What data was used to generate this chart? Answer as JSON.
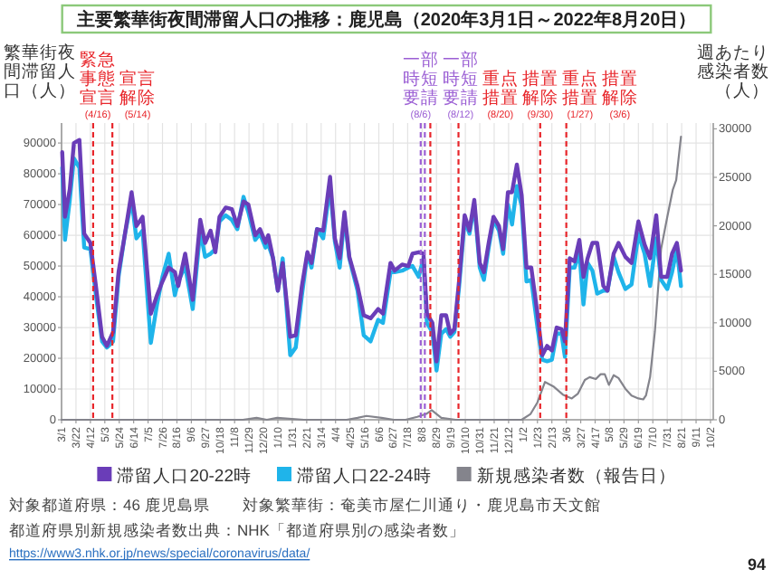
{
  "chart_data": {
    "type": "line",
    "title": "主要繁華街夜間滞留人口の推移：鹿児島（2020年3月1日～2022年8月20日）",
    "ylabel": "繁華街夜間滞留人口（人）",
    "y2label": "週あたり感染者数（人）",
    "x": [
      "2020-03-02",
      "2020-03-06",
      "2020-03-13",
      "2020-03-19",
      "2020-03-27",
      "2020-04-03",
      "2020-04-12",
      "2020-04-20",
      "2020-04-29",
      "2020-05-06",
      "2020-05-15",
      "2020-05-23",
      "2020-06-01",
      "2020-06-11",
      "2020-06-18",
      "2020-06-27",
      "2020-07-09",
      "2020-07-18",
      "2020-07-26",
      "2020-08-04",
      "2020-08-13",
      "2020-08-18",
      "2020-08-28",
      "2020-09-08",
      "2020-09-19",
      "2020-09-26",
      "2020-10-04",
      "2020-10-11",
      "2020-10-17",
      "2020-10-26",
      "2020-11-04",
      "2020-11-12",
      "2020-11-21",
      "2020-11-28",
      "2020-12-08",
      "2020-12-15",
      "2020-12-23",
      "2020-12-27",
      "2021-01-03",
      "2021-01-10",
      "2021-01-17",
      "2021-01-28",
      "2021-02-05",
      "2021-02-14",
      "2021-02-22",
      "2021-02-28",
      "2021-03-08",
      "2021-03-17",
      "2021-03-27",
      "2021-04-03",
      "2021-04-10",
      "2021-04-17",
      "2021-04-24",
      "2021-05-06",
      "2021-05-15",
      "2021-05-25",
      "2021-06-05",
      "2021-06-12",
      "2021-06-23",
      "2021-06-29",
      "2021-07-10",
      "2021-07-19",
      "2021-07-25",
      "2021-08-03",
      "2021-08-10",
      "2021-08-15",
      "2021-08-23",
      "2021-08-29",
      "2021-09-05",
      "2021-09-12",
      "2021-09-18",
      "2021-09-24",
      "2021-10-01",
      "2021-10-09",
      "2021-10-16",
      "2021-10-23",
      "2021-10-31",
      "2021-11-06",
      "2021-11-13",
      "2021-11-20",
      "2021-11-28",
      "2021-12-04",
      "2021-12-11",
      "2021-12-17",
      "2021-12-24",
      "2021-12-31",
      "2022-01-07",
      "2022-01-14",
      "2022-01-23",
      "2022-01-30",
      "2022-02-06",
      "2022-02-13",
      "2022-02-20",
      "2022-02-27",
      "2022-03-04",
      "2022-03-11",
      "2022-03-18",
      "2022-03-25",
      "2022-03-31",
      "2022-04-06",
      "2022-04-13",
      "2022-04-20",
      "2022-04-29",
      "2022-05-05",
      "2022-05-14",
      "2022-05-21",
      "2022-05-31",
      "2022-06-09",
      "2022-06-19",
      "2022-06-28",
      "2022-07-06",
      "2022-07-15",
      "2022-07-22",
      "2022-07-31",
      "2022-08-07",
      "2022-08-14",
      "2022-08-20"
    ],
    "series": [
      {
        "name": "滞留人口20-22時",
        "color": "#6a3db8",
        "values": [
          87000,
          66000,
          75000,
          90000,
          91000,
          60500,
          57500,
          43500,
          27000,
          24000,
          28500,
          48000,
          60000,
          74000,
          63000,
          66000,
          34500,
          40500,
          45000,
          49500,
          48000,
          43500,
          54000,
          39000,
          65000,
          57500,
          61500,
          54500,
          66000,
          69000,
          68500,
          63000,
          71000,
          70000,
          60000,
          62000,
          57500,
          60000,
          52500,
          42000,
          51000,
          27000,
          27500,
          43500,
          54500,
          51000,
          62000,
          61500,
          79000,
          59000,
          52500,
          67500,
          53000,
          43500,
          34000,
          33000,
          36000,
          34500,
          51000,
          48500,
          50500,
          50000,
          54000,
          54500,
          54000,
          34500,
          31500,
          19000,
          34000,
          34000,
          28000,
          29500,
          45500,
          66500,
          61500,
          71500,
          51000,
          48000,
          57500,
          66000,
          63000,
          55500,
          74000,
          74000,
          83000,
          73000,
          49500,
          49500,
          34500,
          21000,
          24000,
          22500,
          30000,
          29500,
          25500,
          52500,
          51500,
          58500,
          46500,
          52500,
          57500,
          57500,
          43500,
          42000,
          54000,
          57500,
          53000,
          51000,
          64500,
          57000,
          52500,
          66500,
          46500,
          46500,
          54000,
          57500,
          48500
        ]
      },
      {
        "name": "滞留人口22-24時",
        "color": "#1fb4ea",
        "values": [
          82000,
          58500,
          71500,
          85000,
          82000,
          56000,
          55500,
          40500,
          25500,
          23500,
          25500,
          46500,
          60000,
          71500,
          59000,
          61500,
          25000,
          37500,
          46500,
          54000,
          40500,
          45000,
          50000,
          36000,
          61500,
          53000,
          54000,
          55500,
          64500,
          66500,
          65000,
          62000,
          72500,
          67500,
          58500,
          60500,
          56000,
          57000,
          52500,
          42000,
          52500,
          21000,
          23500,
          40500,
          54000,
          49500,
          62000,
          59000,
          76000,
          58000,
          49500,
          66000,
          52500,
          42000,
          27500,
          25500,
          32500,
          31500,
          48000,
          48000,
          48500,
          49500,
          50000,
          46500,
          52500,
          31500,
          28500,
          16000,
          28000,
          29500,
          27000,
          28500,
          43500,
          65000,
          60500,
          70000,
          49500,
          45500,
          56000,
          65000,
          61500,
          54000,
          70000,
          63500,
          76000,
          69500,
          45000,
          45500,
          30000,
          19500,
          19000,
          19500,
          28000,
          28000,
          20500,
          49500,
          49500,
          54500,
          37500,
          51000,
          48500,
          41000,
          42000,
          42000,
          53000,
          48000,
          42500,
          44000,
          60500,
          54000,
          43500,
          59000,
          45500,
          42500,
          48000,
          55500,
          43500
        ]
      },
      {
        "name": "新規感染者数（報告日）",
        "color": "#84848c",
        "axis": "y2",
        "x": [
          "2020-03-01",
          "2020-07-01",
          "2020-11-20",
          "2020-12-10",
          "2020-12-25",
          "2021-01-09",
          "2021-02-17",
          "2021-04-20",
          "2021-05-06",
          "2021-05-19",
          "2021-06-10",
          "2021-06-28",
          "2021-07-15",
          "2021-08-01",
          "2021-08-14",
          "2021-08-22",
          "2021-09-05",
          "2021-09-26",
          "2021-12-31",
          "2022-01-13",
          "2022-01-23",
          "2022-02-03",
          "2022-02-16",
          "2022-03-01",
          "2022-03-14",
          "2022-03-23",
          "2022-04-02",
          "2022-04-09",
          "2022-04-18",
          "2022-04-25",
          "2022-05-01",
          "2022-05-07",
          "2022-05-14",
          "2022-05-21",
          "2022-05-31",
          "2022-06-09",
          "2022-06-19",
          "2022-06-26",
          "2022-06-30",
          "2022-07-06",
          "2022-07-13",
          "2022-07-22",
          "2022-07-31",
          "2022-08-08",
          "2022-08-13",
          "2022-08-20"
        ],
        "values": [
          0,
          0,
          0,
          200,
          0,
          200,
          0,
          0,
          200,
          400,
          200,
          0,
          0,
          300,
          600,
          1000,
          200,
          0,
          0,
          600,
          1800,
          3900,
          3400,
          2600,
          2200,
          2700,
          4100,
          4400,
          4200,
          4700,
          4700,
          3600,
          4600,
          4300,
          3200,
          2500,
          2200,
          2100,
          2500,
          4400,
          9100,
          17600,
          20900,
          23700,
          24700,
          29200
        ]
      }
    ],
    "xlim": [
      "2020-03-01",
      "2022-10-06"
    ],
    "xticks": [
      {
        "value": "2020-03-01",
        "label": "3/1"
      },
      {
        "value": "2020-03-22",
        "label": "3/22"
      },
      {
        "value": "2020-04-12",
        "label": "4/12"
      },
      {
        "value": "2020-05-03",
        "label": "5/3"
      },
      {
        "value": "2020-05-24",
        "label": "5/24"
      },
      {
        "value": "2020-06-14",
        "label": "6/14"
      },
      {
        "value": "2020-07-05",
        "label": "7/5"
      },
      {
        "value": "2020-07-26",
        "label": "7/26"
      },
      {
        "value": "2020-08-16",
        "label": "8/16"
      },
      {
        "value": "2020-09-06",
        "label": "9/6"
      },
      {
        "value": "2020-09-27",
        "label": "9/27"
      },
      {
        "value": "2020-10-18",
        "label": "10/18"
      },
      {
        "value": "2020-11-08",
        "label": "11/8"
      },
      {
        "value": "2020-11-29",
        "label": "11/29"
      },
      {
        "value": "2020-12-20",
        "label": "12/20"
      },
      {
        "value": "2021-01-10",
        "label": "1/10"
      },
      {
        "value": "2021-01-31",
        "label": "1/31"
      },
      {
        "value": "2021-02-21",
        "label": "2/21"
      },
      {
        "value": "2021-03-14",
        "label": "3/14"
      },
      {
        "value": "2021-04-04",
        "label": "4/4"
      },
      {
        "value": "2021-04-25",
        "label": "4/25"
      },
      {
        "value": "2021-05-16",
        "label": "5/16"
      },
      {
        "value": "2021-06-06",
        "label": "6/6"
      },
      {
        "value": "2021-06-27",
        "label": "6/27"
      },
      {
        "value": "2021-07-18",
        "label": "7/18"
      },
      {
        "value": "2021-08-08",
        "label": "8/8"
      },
      {
        "value": "2021-08-29",
        "label": "8/29"
      },
      {
        "value": "2021-09-19",
        "label": "9/19"
      },
      {
        "value": "2021-10-10",
        "label": "10/10"
      },
      {
        "value": "2021-10-31",
        "label": "10/31"
      },
      {
        "value": "2021-11-21",
        "label": "11/21"
      },
      {
        "value": "2021-12-12",
        "label": "12/12"
      },
      {
        "value": "2022-01-02",
        "label": "1/2"
      },
      {
        "value": "2022-01-23",
        "label": "1/23"
      },
      {
        "value": "2022-02-13",
        "label": "2/13"
      },
      {
        "value": "2022-03-06",
        "label": "3/6"
      },
      {
        "value": "2022-03-27",
        "label": "3/27"
      },
      {
        "value": "2022-04-17",
        "label": "4/17"
      },
      {
        "value": "2022-05-08",
        "label": "5/8"
      },
      {
        "value": "2022-05-29",
        "label": "5/29"
      },
      {
        "value": "2022-06-19",
        "label": "6/19"
      },
      {
        "value": "2022-07-10",
        "label": "7/10"
      },
      {
        "value": "2022-07-31",
        "label": "7/31"
      },
      {
        "value": "2022-08-21",
        "label": "8/21"
      },
      {
        "value": "2022-09-11",
        "label": "9/11"
      },
      {
        "value": "2022-10-02",
        "label": "10/2"
      }
    ],
    "ylim": [
      0,
      96500
    ],
    "yticks": [
      0,
      10000,
      20000,
      30000,
      40000,
      50000,
      60000,
      70000,
      80000,
      90000
    ],
    "y2lim": [
      0,
      30600
    ],
    "y2ticks": [
      0,
      5000,
      10000,
      15000,
      20000,
      25000,
      30000
    ],
    "ref_lines": [
      {
        "axis": "x",
        "value": "2020-04-16",
        "label": "緊急事態宣言(4/16)",
        "color": "#e8262b",
        "line_style": "dashed"
      },
      {
        "axis": "x",
        "value": "2020-05-14",
        "label": "宣言解除(5/14)",
        "color": "#e8262b",
        "line_style": "dashed"
      },
      {
        "axis": "x",
        "value": "2021-08-06",
        "label": "一部時短要請(8/6)",
        "color": "#9b5fd4",
        "line_style": "dashed"
      },
      {
        "axis": "x",
        "value": "2021-08-12",
        "label": "一部時短要請(8/12)",
        "color": "#9b5fd4",
        "line_style": "dashed"
      },
      {
        "axis": "x",
        "value": "2021-08-20",
        "label": "重点措置(8/20)",
        "color": "#e8262b",
        "line_style": "dashed"
      },
      {
        "axis": "x",
        "value": "2021-09-30",
        "label": "措置解除(9/30)",
        "color": "#e8262b",
        "line_style": "dashed"
      },
      {
        "axis": "x",
        "value": "2022-01-27",
        "label": "重点措置(1/27)",
        "color": "#e8262b",
        "line_style": "dashed"
      },
      {
        "axis": "x",
        "value": "2022-03-06",
        "label": "措置解除(3/6)",
        "color": "#e8262b",
        "line_style": "dashed"
      }
    ],
    "grid": true,
    "legend": "bottom",
    "annotations": [
      "対象都道府県：46 鹿児島県",
      "対象繁華街：奄美市屋仁川通り・鹿児島市天文館",
      "都道府県別新規感染者数出典：NHK「都道府県別の感染者数」",
      "https://www3.nhk.or.jp/news/special/coronavirus/data/",
      "94"
    ]
  }
}
